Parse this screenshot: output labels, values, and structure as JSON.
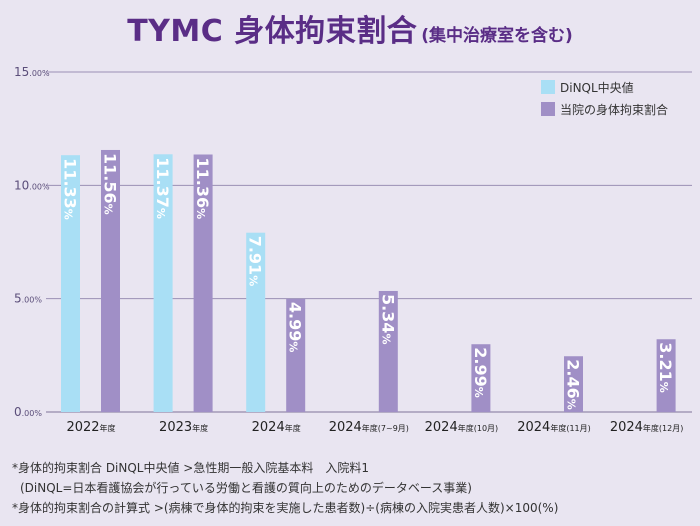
{
  "title": {
    "main": "TYMC 身体拘束割合",
    "sub": "(集中治療室を含む)"
  },
  "chart_data": {
    "type": "bar",
    "y_ticks": [
      {
        "value": 15,
        "label": "15.00%"
      },
      {
        "value": 10,
        "label": "10.00%"
      },
      {
        "value": 5,
        "label": "5.00%"
      },
      {
        "value": 0,
        "label": "0.00%"
      }
    ],
    "ylim": [
      0,
      15
    ],
    "grid": true,
    "legend_position": "top-right",
    "categories": [
      {
        "main": "2022",
        "suffix": "年度"
      },
      {
        "main": "2023",
        "suffix": "年度"
      },
      {
        "main": "2024",
        "suffix": "年度"
      },
      {
        "main": "2024",
        "suffix": "年度(7~9月)"
      },
      {
        "main": "2024",
        "suffix": "年度(10月)"
      },
      {
        "main": "2024",
        "suffix": "年度(11月)"
      },
      {
        "main": "2024",
        "suffix": "年度(12月)"
      }
    ],
    "series": [
      {
        "name": "DiNQL中央値",
        "color": "#a9dff5",
        "values": [
          11.33,
          11.37,
          7.91,
          null,
          null,
          null,
          null
        ],
        "labels": [
          "11.33",
          "11.37",
          "7.91",
          null,
          null,
          null,
          null
        ]
      },
      {
        "name": "当院の身体拘束割合",
        "color": "#a08fc6",
        "values": [
          11.56,
          11.36,
          4.99,
          5.34,
          2.99,
          2.46,
          3.21
        ],
        "labels": [
          "11.56",
          "11.36",
          "4.99",
          "5.34",
          "2.99",
          "2.46",
          "3.21"
        ]
      }
    ],
    "value_suffix": "%"
  },
  "footnotes": [
    "*身体的拘束割合 DiNQL中央値 >急性期一般入院基本料　入院料1",
    "(DiNQL=日本看護協会が行っている労働と看護の質向上のためのデータベース事業)",
    "*身体的拘束割合の計算式 >(病棟で身体的拘束を実施した患者数)÷(病棟の入院実患者人数)×100(%)"
  ],
  "colors": {
    "background": "#e9e5f1",
    "title": "#5a2d86",
    "grid": "#9a8fb5",
    "axis_text": "#5b4e7a"
  }
}
